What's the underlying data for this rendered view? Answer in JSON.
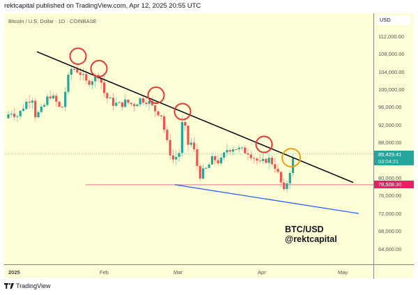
{
  "header": {
    "published_line": "rektcapital published on TradingView.com, Apr 12, 2025 20:55 UTC"
  },
  "chart": {
    "symbol_line": "Bitcoin / U.S. Dollar · 1D · COINBASE",
    "currency": "USD",
    "last_price": "85,429.41",
    "countdown": "03:04:21",
    "horizontal_level_label": "78,508.30",
    "annotation_line1": "BTC/USD",
    "annotation_line2": "@rektcapital",
    "colors": {
      "background": "#fdfdd6",
      "up": "#26a69a",
      "down": "#ef5350",
      "last_price_label": "#26a69a",
      "level_label": "#e91e63",
      "level_line": "#e8a0a8",
      "resistance_line": "#000000",
      "support_line": "#2962ff",
      "rejection_circles": "#e53935",
      "breakout_circle": "#f59e0b"
    }
  },
  "price_axis": [
    "112,000.00",
    "108,000.00",
    "104,000.00",
    "100,000.00",
    "96,000.00",
    "92,000.00",
    "88,000.00",
    "80,000.00",
    "76,000.00",
    "72,000.00",
    "68,000.00",
    "64,000.00"
  ],
  "time_axis": [
    "2025",
    "Feb",
    "Mar",
    "Apr",
    "May"
  ],
  "footer": {
    "brand": "TradingView"
  },
  "chart_data": {
    "type": "candlestick",
    "title": "Bitcoin / U.S. Dollar · 1D · COINBASE",
    "xlabel": "",
    "ylabel": "USD",
    "ylim": [
      62000,
      114000
    ],
    "x_ticks": [
      "2025",
      "Feb",
      "Mar",
      "Apr",
      "May"
    ],
    "y_ticks": [
      64000,
      68000,
      72000,
      76000,
      80000,
      88000,
      92000,
      96000,
      100000,
      104000,
      108000,
      112000
    ],
    "last_price": 85429.41,
    "horizontal_level": 78508.3,
    "drawings": [
      {
        "type": "trendline",
        "name": "descending resistance",
        "color": "#000000",
        "from": {
          "date": "2024-12-17",
          "price": 108500
        },
        "to": {
          "date": "2025-04-30",
          "price": 79000
        }
      },
      {
        "type": "trendline",
        "name": "descending support",
        "color": "#2962ff",
        "from": {
          "date": "2025-02-28",
          "price": 78500
        },
        "to": {
          "date": "2025-05-05",
          "price": 72000
        }
      },
      {
        "type": "horizontal",
        "price": 78508.3
      },
      {
        "type": "circles",
        "color": "red",
        "count": 5,
        "note": "rejections at trendline"
      },
      {
        "type": "circle",
        "color": "orange",
        "note": "breakout test"
      }
    ],
    "approx_closes": [
      {
        "date": "2024-12-26",
        "close": 95500
      },
      {
        "date": "2025-01-06",
        "close": 102000
      },
      {
        "date": "2025-01-13",
        "close": 94500
      },
      {
        "date": "2025-01-20",
        "close": 102500
      },
      {
        "date": "2025-01-27",
        "close": 101500
      },
      {
        "date": "2025-02-03",
        "close": 97500
      },
      {
        "date": "2025-02-10",
        "close": 96500
      },
      {
        "date": "2025-02-20",
        "close": 98000
      },
      {
        "date": "2025-02-26",
        "close": 84500
      },
      {
        "date": "2025-03-02",
        "close": 94000
      },
      {
        "date": "2025-03-10",
        "close": 78700
      },
      {
        "date": "2025-03-20",
        "close": 84000
      },
      {
        "date": "2025-03-26",
        "close": 87000
      },
      {
        "date": "2025-04-06",
        "close": 78000
      },
      {
        "date": "2025-04-09",
        "close": 82500
      },
      {
        "date": "2025-04-12",
        "close": 85429.41
      }
    ]
  }
}
